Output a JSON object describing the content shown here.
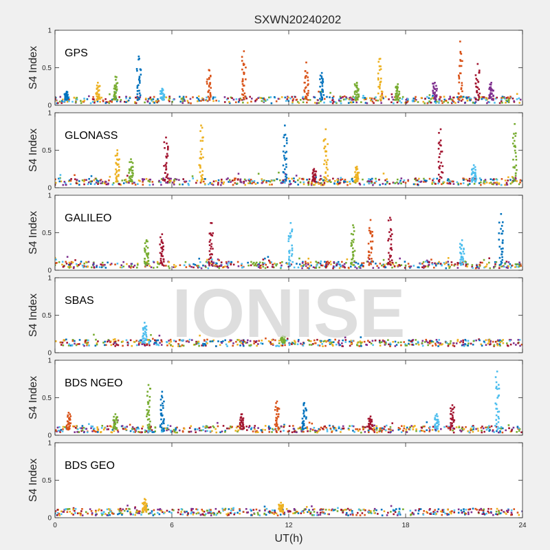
{
  "watermark": "IONISE",
  "chart_data": {
    "type": "scatter",
    "title": "SXWN20240202",
    "xlabel": "UT(h)",
    "ylabel": "S4 Index",
    "xlim": [
      0,
      24
    ],
    "ylim": [
      0,
      1
    ],
    "xticks": [
      0,
      6,
      12,
      18,
      24
    ],
    "yticks": [
      0,
      0.5,
      1
    ],
    "yticklabels": [
      "0",
      "0.5",
      "1"
    ],
    "grid": false,
    "marker": "square",
    "colors": [
      "#0072BD",
      "#D95319",
      "#EDB120",
      "#7E2F8E",
      "#77AC30",
      "#4DBEEE",
      "#A2142F"
    ],
    "panels": [
      {
        "label": "GPS",
        "baseline": 0.07,
        "spikes": [
          {
            "t": 0.6,
            "peak": 0.18,
            "series": 0
          },
          {
            "t": 2.2,
            "peak": 0.3,
            "series": 2
          },
          {
            "t": 3.1,
            "peak": 0.38,
            "series": 4
          },
          {
            "t": 4.3,
            "peak": 0.65,
            "series": 0
          },
          {
            "t": 5.5,
            "peak": 0.22,
            "series": 5
          },
          {
            "t": 7.9,
            "peak": 0.47,
            "series": 1
          },
          {
            "t": 9.7,
            "peak": 0.72,
            "series": 1
          },
          {
            "t": 12.9,
            "peak": 0.57,
            "series": 1
          },
          {
            "t": 13.7,
            "peak": 0.43,
            "series": 0
          },
          {
            "t": 15.5,
            "peak": 0.3,
            "series": 4
          },
          {
            "t": 16.7,
            "peak": 0.62,
            "series": 2
          },
          {
            "t": 17.6,
            "peak": 0.28,
            "series": 4
          },
          {
            "t": 19.5,
            "peak": 0.3,
            "series": 3
          },
          {
            "t": 20.8,
            "peak": 0.85,
            "series": 1
          },
          {
            "t": 21.7,
            "peak": 0.55,
            "series": 6
          },
          {
            "t": 22.4,
            "peak": 0.3,
            "series": 3
          }
        ]
      },
      {
        "label": "GLONASS",
        "baseline": 0.08,
        "spikes": [
          {
            "t": 3.2,
            "peak": 0.5,
            "series": 2
          },
          {
            "t": 3.9,
            "peak": 0.38,
            "series": 4
          },
          {
            "t": 5.7,
            "peak": 0.67,
            "series": 6
          },
          {
            "t": 7.5,
            "peak": 0.83,
            "series": 2
          },
          {
            "t": 11.8,
            "peak": 0.83,
            "series": 0
          },
          {
            "t": 13.3,
            "peak": 0.25,
            "series": 6
          },
          {
            "t": 13.9,
            "peak": 0.78,
            "series": 2
          },
          {
            "t": 15.5,
            "peak": 0.28,
            "series": 2
          },
          {
            "t": 19.8,
            "peak": 0.78,
            "series": 6
          },
          {
            "t": 21.5,
            "peak": 0.3,
            "series": 5
          },
          {
            "t": 23.6,
            "peak": 0.85,
            "series": 4
          }
        ]
      },
      {
        "label": "GALILEO",
        "baseline": 0.07,
        "spikes": [
          {
            "t": 4.7,
            "peak": 0.4,
            "series": 4
          },
          {
            "t": 5.5,
            "peak": 0.48,
            "series": 6
          },
          {
            "t": 8.0,
            "peak": 0.63,
            "series": 6
          },
          {
            "t": 12.1,
            "peak": 0.63,
            "series": 5
          },
          {
            "t": 15.3,
            "peak": 0.6,
            "series": 4
          },
          {
            "t": 16.2,
            "peak": 0.67,
            "series": 1
          },
          {
            "t": 17.2,
            "peak": 0.7,
            "series": 6
          },
          {
            "t": 20.9,
            "peak": 0.4,
            "series": 5
          },
          {
            "t": 22.9,
            "peak": 0.75,
            "series": 0
          }
        ]
      },
      {
        "label": "SBAS",
        "baseline": 0.13,
        "spikes": [
          {
            "t": 4.6,
            "peak": 0.4,
            "series": 5
          },
          {
            "t": 11.7,
            "peak": 0.22,
            "series": 4
          }
        ]
      },
      {
        "label": "BDS NGEO",
        "baseline": 0.08,
        "spikes": [
          {
            "t": 0.7,
            "peak": 0.3,
            "series": 1
          },
          {
            "t": 3.1,
            "peak": 0.28,
            "series": 4
          },
          {
            "t": 4.8,
            "peak": 0.67,
            "series": 4
          },
          {
            "t": 5.5,
            "peak": 0.58,
            "series": 0
          },
          {
            "t": 9.6,
            "peak": 0.28,
            "series": 6
          },
          {
            "t": 11.4,
            "peak": 0.45,
            "series": 1
          },
          {
            "t": 12.8,
            "peak": 0.43,
            "series": 0
          },
          {
            "t": 16.2,
            "peak": 0.25,
            "series": 6
          },
          {
            "t": 19.6,
            "peak": 0.28,
            "series": 5
          },
          {
            "t": 20.4,
            "peak": 0.4,
            "series": 6
          },
          {
            "t": 22.7,
            "peak": 0.85,
            "series": 5
          }
        ]
      },
      {
        "label": "BDS GEO",
        "baseline": 0.075,
        "spikes": [
          {
            "t": 4.6,
            "peak": 0.25,
            "series": 2
          },
          {
            "t": 11.6,
            "peak": 0.2,
            "series": 2
          }
        ]
      }
    ]
  }
}
